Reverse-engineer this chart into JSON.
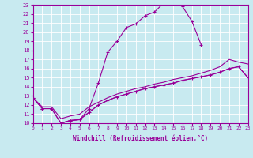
{
  "xlabel": "Windchill (Refroidissement éolien,°C)",
  "xlim": [
    0,
    23
  ],
  "ylim": [
    10,
    23
  ],
  "xticks": [
    0,
    1,
    2,
    3,
    4,
    5,
    6,
    7,
    8,
    9,
    10,
    11,
    12,
    13,
    14,
    15,
    16,
    17,
    18,
    19,
    20,
    21,
    22,
    23
  ],
  "yticks": [
    10,
    11,
    12,
    13,
    14,
    15,
    16,
    17,
    18,
    19,
    20,
    21,
    22,
    23
  ],
  "background_color": "#c8eaf0",
  "line_color": "#990099",
  "grid_color": "#ffffff",
  "curve1_x": [
    0,
    1,
    2,
    3,
    4,
    5,
    6,
    7,
    8,
    9,
    10,
    11,
    12,
    13,
    14,
    15,
    16,
    17,
    18
  ],
  "curve1_y": [
    12.8,
    11.6,
    11.6,
    10.0,
    10.3,
    10.4,
    11.6,
    14.4,
    17.8,
    19.0,
    20.5,
    20.9,
    21.8,
    22.2,
    23.2,
    23.3,
    22.8,
    21.2,
    18.6
  ],
  "curve2_x": [
    0,
    1,
    2,
    3,
    4,
    5,
    6,
    7,
    8,
    9,
    10,
    11,
    12,
    13,
    14,
    15,
    16,
    17,
    18,
    19,
    20,
    21,
    22,
    23
  ],
  "curve2_y": [
    12.8,
    11.6,
    11.6,
    10.0,
    10.3,
    10.4,
    11.2,
    12.0,
    12.5,
    12.9,
    13.2,
    13.5,
    13.8,
    14.0,
    14.2,
    14.4,
    14.7,
    14.9,
    15.1,
    15.3,
    15.6,
    16.0,
    16.2,
    15.0
  ],
  "curve3_x": [
    0,
    1,
    2,
    3,
    4,
    5,
    6,
    7,
    8,
    9,
    10,
    11,
    12,
    13,
    14,
    15,
    16,
    17,
    18,
    19,
    20,
    21,
    22,
    23
  ],
  "curve3_y": [
    12.8,
    11.8,
    11.8,
    10.5,
    10.8,
    11.0,
    11.8,
    12.3,
    12.8,
    13.2,
    13.5,
    13.8,
    14.0,
    14.3,
    14.5,
    14.8,
    15.0,
    15.2,
    15.5,
    15.8,
    16.2,
    17.0,
    16.7,
    16.5
  ],
  "curve4_x": [
    3,
    4,
    5,
    6,
    7,
    8,
    9,
    10,
    11,
    12,
    13,
    14,
    15,
    16,
    17,
    18,
    19,
    20,
    21,
    22,
    23
  ],
  "curve4_y": [
    10.0,
    10.3,
    10.4,
    11.2,
    12.0,
    12.5,
    12.9,
    13.2,
    13.5,
    13.8,
    14.0,
    14.2,
    14.4,
    14.7,
    14.9,
    15.1,
    15.3,
    15.6,
    16.0,
    16.2,
    15.0
  ]
}
